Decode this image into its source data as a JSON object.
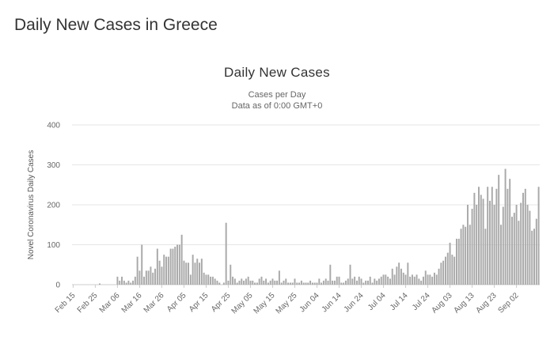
{
  "page": {
    "title": "Daily New Cases in Greece"
  },
  "chart_data": {
    "type": "bar",
    "title": "Daily New Cases",
    "subtitle": "Cases per Day",
    "subtitle2": "Data as of 0:00 GMT+0",
    "xlabel": "",
    "ylabel": "Novel Coronavirus Daily Cases",
    "ylim": [
      0,
      400
    ],
    "yticks": [
      0,
      100,
      200,
      300,
      400
    ],
    "grid": true,
    "bar_color": "#a9a9a9",
    "x_tick_labels": [
      "Feb 15",
      "Feb 25",
      "Mar 06",
      "Mar 16",
      "Mar 26",
      "Apr 05",
      "Apr 15",
      "Apr 25",
      "May 05",
      "May 15",
      "May 25",
      "Jun 04",
      "Jun 14",
      "Jun 24",
      "Jul 04",
      "Jul 14",
      "Jul 24",
      "Aug 03",
      "Aug 13",
      "Aug 23",
      "Sep 02"
    ],
    "start_date": "Feb 15",
    "series": [
      {
        "values": [
          0,
          0,
          0,
          0,
          0,
          0,
          0,
          0,
          0,
          0,
          0,
          0,
          3,
          0,
          0,
          0,
          0,
          0,
          0,
          0,
          20,
          10,
          20,
          10,
          5,
          10,
          5,
          10,
          20,
          70,
          35,
          100,
          20,
          35,
          35,
          45,
          30,
          40,
          90,
          60,
          45,
          75,
          70,
          70,
          90,
          90,
          95,
          100,
          100,
          125,
          60,
          55,
          55,
          25,
          75,
          55,
          65,
          55,
          65,
          30,
          25,
          25,
          20,
          20,
          15,
          10,
          5,
          0,
          5,
          155,
          10,
          50,
          20,
          15,
          5,
          10,
          15,
          10,
          15,
          20,
          10,
          10,
          5,
          5,
          15,
          20,
          10,
          15,
          5,
          10,
          15,
          10,
          10,
          35,
          5,
          10,
          15,
          5,
          5,
          5,
          15,
          5,
          5,
          10,
          5,
          5,
          5,
          10,
          5,
          5,
          5,
          15,
          5,
          10,
          15,
          10,
          50,
          10,
          10,
          20,
          20,
          5,
          5,
          10,
          15,
          50,
          15,
          20,
          10,
          20,
          15,
          5,
          10,
          10,
          20,
          5,
          15,
          10,
          15,
          20,
          25,
          25,
          20,
          15,
          40,
          25,
          45,
          55,
          40,
          30,
          25,
          55,
          20,
          25,
          20,
          25,
          15,
          10,
          20,
          35,
          25,
          25,
          20,
          30,
          25,
          40,
          55,
          60,
          70,
          80,
          105,
          75,
          70,
          115,
          115,
          140,
          150,
          145,
          200,
          150,
          190,
          230,
          200,
          245,
          225,
          215,
          140,
          245,
          210,
          245,
          200,
          240,
          275,
          150,
          195,
          290,
          240,
          265,
          170,
          180,
          200,
          160,
          205,
          230,
          240,
          200,
          185,
          135,
          140,
          165,
          245
        ]
      }
    ]
  }
}
